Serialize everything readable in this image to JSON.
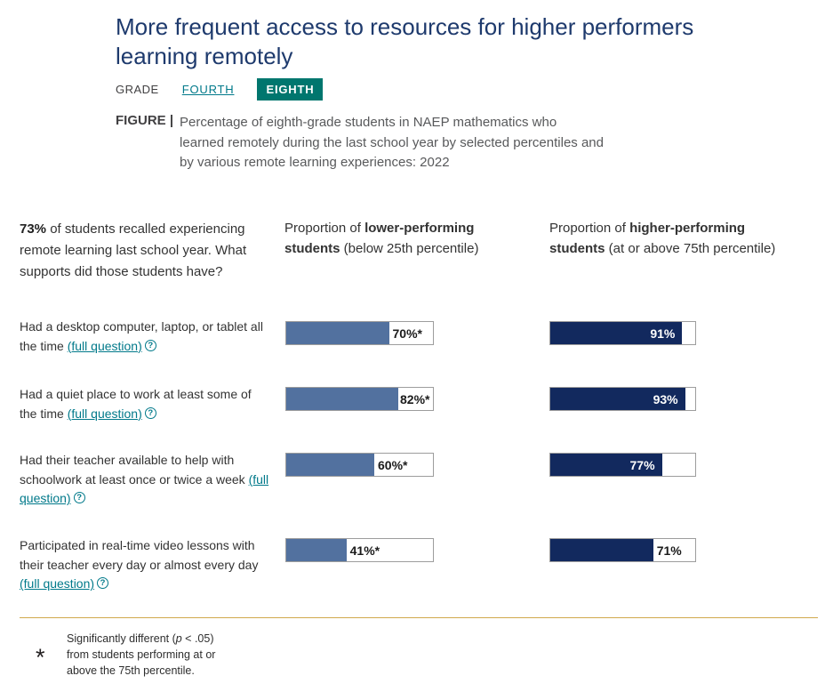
{
  "header": {
    "title": "More frequent access to resources for higher performers learning remotely",
    "grade_label": "GRADE",
    "grades": [
      {
        "label": "FOURTH",
        "selected": false
      },
      {
        "label": "EIGHTH",
        "selected": true
      }
    ],
    "figure_label": "FIGURE |",
    "figure_caption": "Percentage of eighth-grade students in NAEP mathematics who learned remotely during the last school year by selected percentiles and by various remote learning experiences: 2022"
  },
  "intro": {
    "bold": "73%",
    "rest": " of students recalled experiencing remote learning last school year. What supports did those students have?"
  },
  "columns": {
    "lower": {
      "prefix": "Proportion of ",
      "bold": "lower-performing students",
      "suffix": " (below 25th percentile)"
    },
    "higher": {
      "prefix": "Proportion of ",
      "bold": "higher-performing students",
      "suffix": " (at or above 75th percentile)"
    }
  },
  "main": {
    "full_question_label": "(full question)",
    "question_icon_glyph": "?"
  },
  "chart_data": {
    "type": "bar",
    "orientation": "horizontal",
    "categories": [
      "Had a desktop computer, laptop, or tablet all the time",
      "Had a quiet place to work at least some of the time",
      "Had their teacher available to help with schoolwork at least once or twice a week",
      "Participated in real-time video lessons with their teacher every day or almost every day"
    ],
    "series": [
      {
        "name": "Proportion of lower-performing students (below 25th percentile)",
        "color": "#52719f",
        "values": [
          70,
          82,
          60,
          41
        ],
        "labels": [
          "70%*",
          "82%*",
          "60%*",
          "41%*"
        ]
      },
      {
        "name": "Proportion of higher-performing students (at or above 75th percentile)",
        "color": "#12295e",
        "values": [
          91,
          93,
          77,
          71
        ],
        "labels": [
          "91%",
          "93%",
          "77%",
          "71%"
        ]
      }
    ],
    "xlim": [
      0,
      100
    ],
    "value_suffix": "%",
    "significance_marker": "*",
    "grid": false,
    "legend_position": "column-headers"
  },
  "footnote": {
    "symbol": "*",
    "pre": "Significantly different (",
    "italic": "p",
    "post": " < .05) from students performing at or above the 75th percentile."
  }
}
